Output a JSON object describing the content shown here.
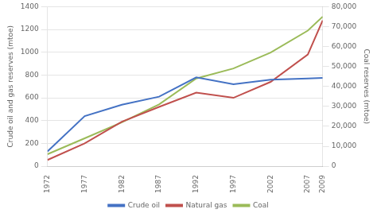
{
  "chart_data": {
    "type": "line",
    "x": [
      1972,
      1977,
      1982,
      1987,
      1992,
      1997,
      2002,
      2007,
      2009
    ],
    "series": [
      {
        "name": "Crude oil",
        "color": "#4472C4",
        "values": [
          130,
          440,
          540,
          610,
          780,
          720,
          760,
          770,
          775
        ]
      },
      {
        "name": "Natural gas",
        "color": "#C0504D",
        "values": [
          55,
          200,
          390,
          520,
          645,
          600,
          740,
          980,
          1280
        ]
      },
      {
        "name": "Coal",
        "color": "#9BBB59",
        "axis": "y2",
        "values": [
          6000,
          14000,
          22000,
          31000,
          44000,
          49000,
          57000,
          68000,
          75000
        ]
      }
    ],
    "xlim": [
      1972,
      2009
    ],
    "xticks": [
      1972,
      1977,
      1982,
      1987,
      1992,
      1997,
      2002,
      2007,
      2009
    ],
    "ylim": [
      0,
      1400
    ],
    "yticks": [
      0,
      200,
      400,
      600,
      800,
      1000,
      1200,
      1400
    ],
    "y2lim": [
      0,
      80000
    ],
    "y2ticks": [
      {
        "value": 0,
        "label": "0"
      },
      {
        "value": 10000,
        "label": "10,000"
      },
      {
        "value": 20000,
        "label": "20,000"
      },
      {
        "value": 30000,
        "label": "30,000"
      },
      {
        "value": 40000,
        "label": "40,000"
      },
      {
        "value": 50000,
        "label": "50,000"
      },
      {
        "value": 60000,
        "label": "60,000"
      },
      {
        "value": 70000,
        "label": "70,000"
      },
      {
        "value": 80000,
        "label": "80,000"
      }
    ],
    "ylabel": "Crude oil and gas reserves (mtoe)",
    "y2label": "Coal reserves (mtoe)",
    "grid": "y",
    "legend": "bottom"
  }
}
